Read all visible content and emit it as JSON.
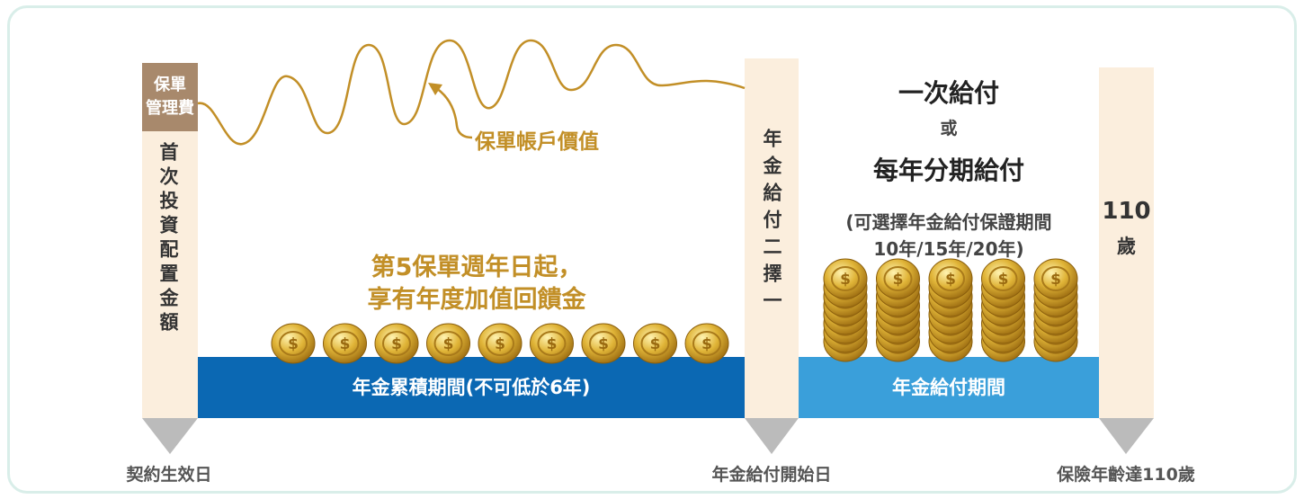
{
  "left_pillar": {
    "fee_label": [
      "保單",
      "管理費"
    ],
    "text": "首次投資配置金額",
    "date_label": "契約生效日"
  },
  "account_value_label": "保單帳戶價值",
  "bonus_label": [
    "第5保單週年日起，",
    "享有年度加值回饋金"
  ],
  "accumulation_bar": "年金累積期間(不可低於6年)",
  "middle_pillar": {
    "text": "年金給付二擇一",
    "date_label": "年金給付開始日"
  },
  "payout_options": {
    "option1": "一次給付",
    "or": "或",
    "option2": "每年分期給付",
    "note": [
      "(可選擇年金給付保證期間",
      "10年/15年/20年)"
    ]
  },
  "payout_bar": "年金給付期間",
  "right_pillar": {
    "text": [
      "110",
      "歲"
    ],
    "date_label": "保險年齡達110歲"
  }
}
